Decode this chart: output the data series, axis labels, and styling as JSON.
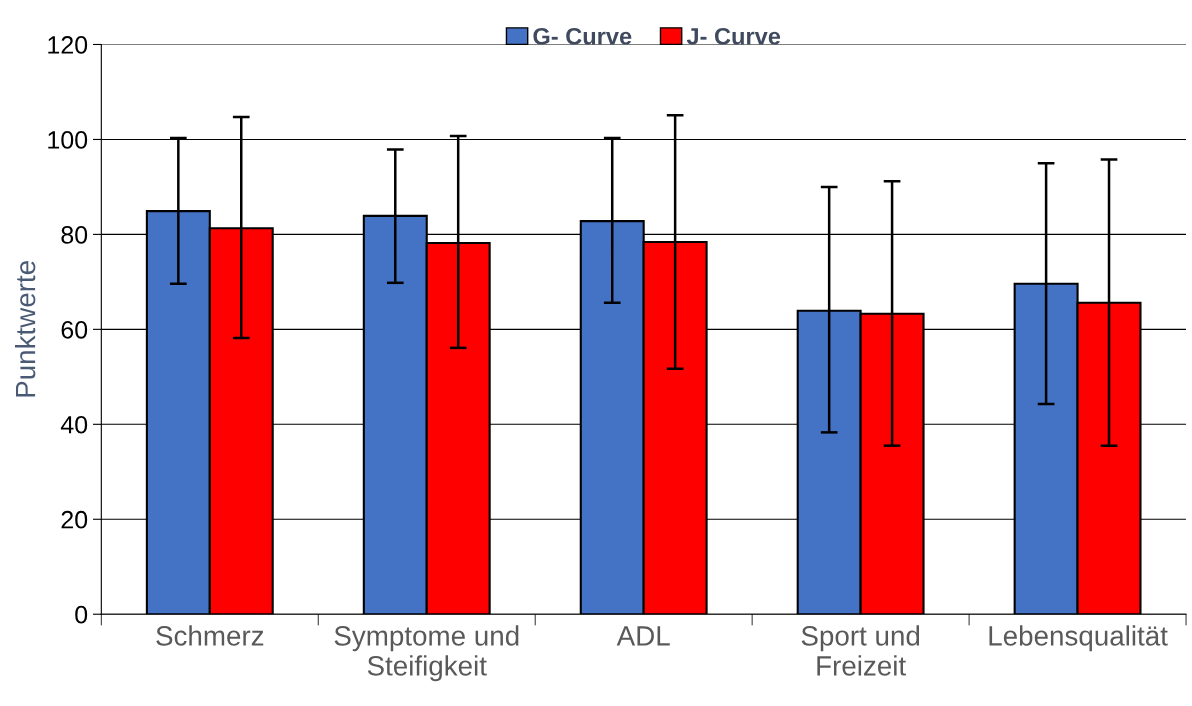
{
  "chart_data": {
    "type": "bar",
    "ylabel": "Punktwerte",
    "categories": [
      "Schmerz",
      "Symptome und\nSteifigkeit",
      "ADL",
      "Sport und\nFreizeit",
      "Lebensqualität"
    ],
    "series": [
      {
        "name": "G- Curve",
        "color": "#4472c4",
        "values": [
          84.9,
          83.9,
          82.8,
          63.9,
          69.6
        ],
        "errors": [
          [
            69.6,
            100.3
          ],
          [
            69.8,
            97.9
          ],
          [
            65.6,
            100.3
          ],
          [
            38.3,
            90.0
          ],
          [
            44.3,
            95.0
          ]
        ]
      },
      {
        "name": "J- Curve",
        "color": "#ff0000",
        "values": [
          81.3,
          78.2,
          78.4,
          63.3,
          65.6
        ],
        "errors": [
          [
            58.2,
            104.7
          ],
          [
            56.1,
            100.7
          ],
          [
            51.7,
            105.1
          ],
          [
            35.5,
            91.2
          ],
          [
            35.5,
            95.8
          ]
        ]
      }
    ],
    "ylim": [
      0,
      120
    ],
    "yticks": [
      0,
      20,
      40,
      60,
      80,
      100,
      120
    ],
    "grid": "y",
    "legend": "top"
  }
}
